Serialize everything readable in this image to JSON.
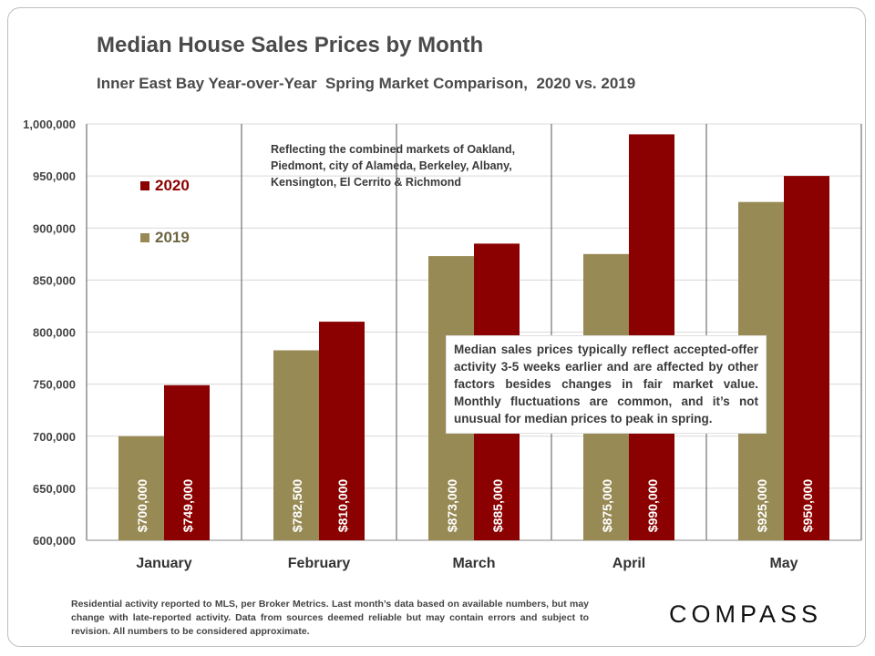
{
  "header": {
    "title": "Median House Sales Prices by Month",
    "subtitle": "Inner East Bay Year-over-Year  Spring Market Comparison,  2020 vs. 2019"
  },
  "legend": [
    {
      "label": "2020",
      "color": "#8b0000"
    },
    {
      "label": "2019",
      "color": "#978a54"
    }
  ],
  "notes": {
    "markets": "Reflecting the combined markets of Oakland, Piedmont, city of Alameda, Berkeley, Albany, Kensington, El Cerrito & Richmond",
    "disclaimer": "Median sales prices typically reflect accepted-offer activity 3-5 weeks earlier and are affected by other factors besides changes in fair market value. Monthly fluctuations are common, and it’s not unusual for median prices to peak in spring."
  },
  "footnote": "Residential activity reported to MLS, per Broker Metrics. Last month’s data based on available numbers, but may change with late-reported activity. Data from sources deemed reliable but may contain errors and subject to revision. All numbers to be considered approximate.",
  "logo": "COMPASS",
  "chart_data": {
    "type": "bar",
    "title": "Median House Sales Prices by Month",
    "subtitle": "Inner East Bay Year-over-Year  Spring Market Comparison,  2020 vs. 2019",
    "categories": [
      "January",
      "February",
      "March",
      "April",
      "May"
    ],
    "series": [
      {
        "name": "2019",
        "color": "#978a54",
        "values": [
          700000,
          782500,
          873000,
          875000,
          925000
        ],
        "labels": [
          "$700,000",
          "$782,500",
          "$873,000",
          "$875,000",
          "$925,000"
        ]
      },
      {
        "name": "2020",
        "color": "#8b0000",
        "values": [
          749000,
          810000,
          885000,
          990000,
          950000
        ],
        "labels": [
          "$749,000",
          "$810,000",
          "$885,000",
          "$990,000",
          "$950,000"
        ]
      }
    ],
    "ylim": [
      600000,
      1000000
    ],
    "yticks": [
      600000,
      650000,
      700000,
      750000,
      800000,
      850000,
      900000,
      950000,
      1000000
    ],
    "ytick_labels": [
      "600,000",
      "650,000",
      "700,000",
      "750,000",
      "800,000",
      "850,000",
      "900,000",
      "950,000",
      "1,000,000"
    ],
    "grid": true,
    "legend_position": "top-left",
    "xlabel": "",
    "ylabel": ""
  }
}
